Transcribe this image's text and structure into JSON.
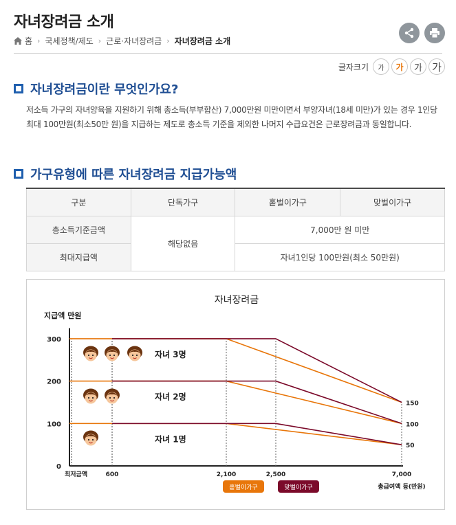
{
  "header": {
    "title": "자녀장려금 소개",
    "breadcrumb": [
      "홈",
      "국세정책/제도",
      "근로·자녀장려금",
      "자녀장려금 소개"
    ]
  },
  "fontsize": {
    "label": "글자크기",
    "buttons": [
      "가",
      "가",
      "가",
      "가"
    ]
  },
  "section1": {
    "heading": "자녀장려금이란 무엇인가요?",
    "text": "저소득 가구의 자녀양육을 지원하기 위해 총소득(부부합산) 7,000만원 미만이면서 부양자녀(18세 미만)가 있는 경우 1인당 최대 100만원(최소50만 원)을 지급하는 제도로 총소득 기준을 제외한 나머지 수급요건은 근로장려금과 동일합니다."
  },
  "section2": {
    "heading": "가구유형에 따른 자녀장려금 지급가능액"
  },
  "table": {
    "headers": [
      "구분",
      "단독가구",
      "홑벌이가구",
      "맞벌이가구"
    ],
    "row1_label": "총소득기준금액",
    "row2_label": "최대지급액",
    "single_value": "해당없음",
    "income_value": "7,000만 원 미만",
    "max_value": "자녀1인당 100만원(최소 50만원)"
  },
  "colors": {
    "single_earner": "#e8760a",
    "dual_earner": "#7b0a2a",
    "accent": "#1f4e93"
  },
  "chart_data": {
    "type": "line",
    "title": "자녀장려금",
    "ylabel": "지급액 만원",
    "xlabel": "총급여액 등(만원)",
    "x_ticks": [
      0,
      600,
      2100,
      2500,
      7000
    ],
    "x_tick_labels": [
      "최저금액",
      "600",
      "2,100",
      "2,500",
      "7,000"
    ],
    "y_ticks": [
      0,
      100,
      200,
      300
    ],
    "y_tick_labels": [
      "0",
      "100",
      "200",
      "300"
    ],
    "right_labels": [
      "150",
      "100",
      "50"
    ],
    "legend": [
      "홑벌이가구",
      "맞벌이가구"
    ],
    "child_labels": [
      "자녀 3명",
      "자녀 2명",
      "자녀 1명"
    ],
    "series": [
      {
        "name": "홑벌이가구",
        "children": 3,
        "points": [
          [
            0,
            300
          ],
          [
            2100,
            300
          ],
          [
            7000,
            150
          ]
        ]
      },
      {
        "name": "맞벌이가구",
        "children": 3,
        "points": [
          [
            600,
            300
          ],
          [
            2500,
            300
          ],
          [
            7000,
            150
          ]
        ]
      },
      {
        "name": "홑벌이가구",
        "children": 2,
        "points": [
          [
            0,
            200
          ],
          [
            2100,
            200
          ],
          [
            7000,
            100
          ]
        ]
      },
      {
        "name": "맞벌이가구",
        "children": 2,
        "points": [
          [
            600,
            200
          ],
          [
            2500,
            200
          ],
          [
            7000,
            100
          ]
        ]
      },
      {
        "name": "홑벌이가구",
        "children": 1,
        "points": [
          [
            0,
            100
          ],
          [
            2100,
            100
          ],
          [
            7000,
            50
          ]
        ]
      },
      {
        "name": "맞벌이가구",
        "children": 1,
        "points": [
          [
            600,
            100
          ],
          [
            2500,
            100
          ],
          [
            7000,
            50
          ]
        ]
      }
    ]
  }
}
